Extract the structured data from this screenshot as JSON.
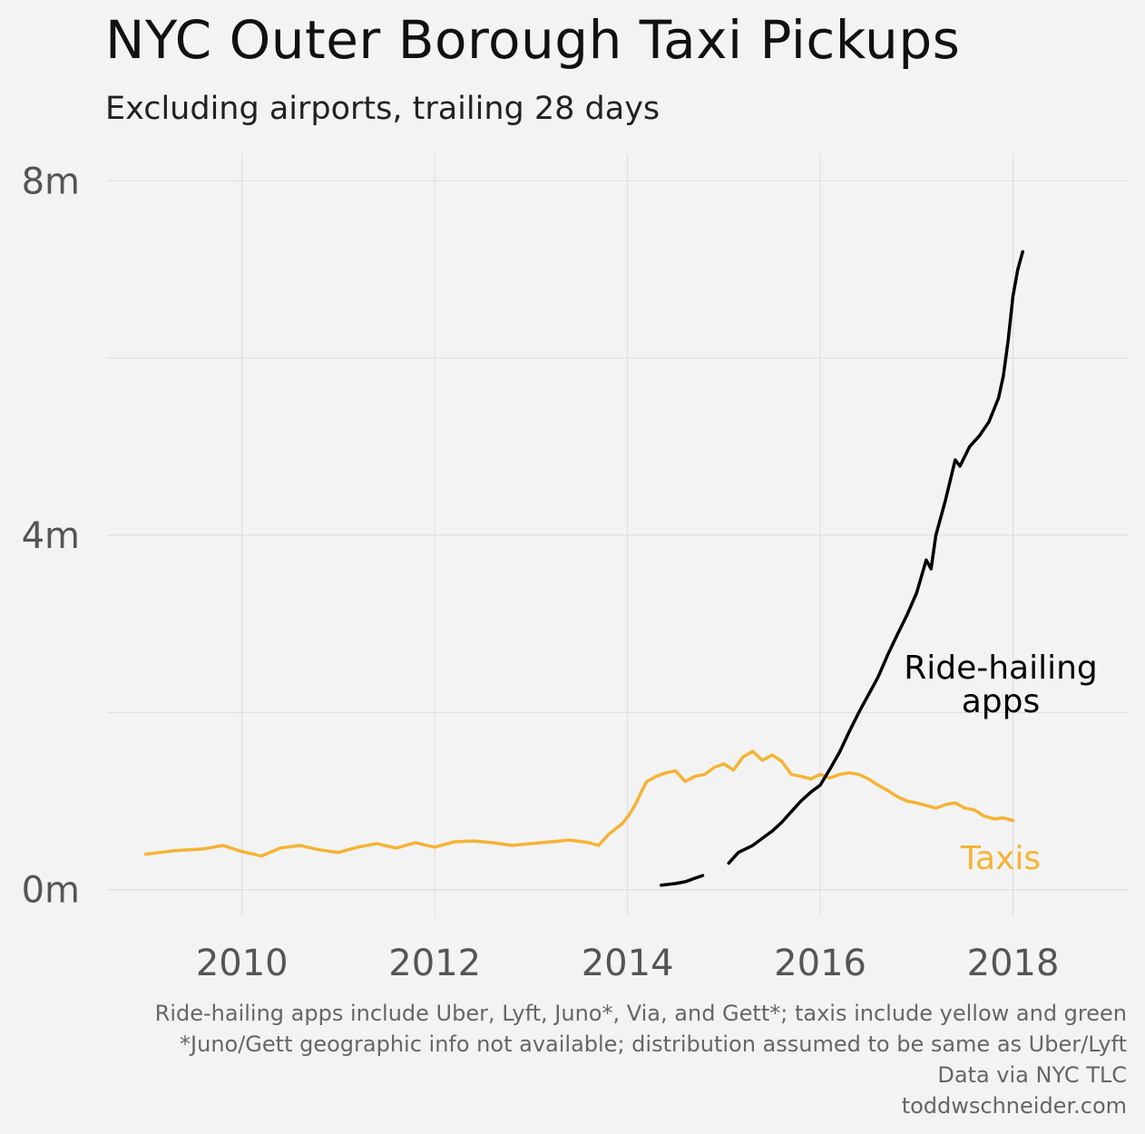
{
  "title": "NYC Outer Borough Taxi Pickups",
  "subtitle": "Excluding airports, trailing 28 days",
  "caption": [
    "Ride-hailing apps include Uber, Lyft, Juno*, Via, and Gett*; taxis include yellow and green",
    "*Juno/Gett geographic info not available; distribution assumed to be same as Uber/Lyft",
    "Data via NYC TLC",
    "toddwschneider.com"
  ],
  "colors": {
    "taxis": "#f5b335",
    "ride_hailing": "#000000",
    "grid": "#dcdcdc",
    "tick_text": "#555555"
  },
  "chart_data": {
    "type": "line",
    "xlim": [
      2008.6,
      2019.2
    ],
    "ylim": [
      -0.3,
      8.3
    ],
    "x_ticks": [
      2010,
      2012,
      2014,
      2016,
      2018
    ],
    "x_tick_labels": [
      "2010",
      "2012",
      "2014",
      "2016",
      "2018"
    ],
    "y_ticks": [
      0,
      4,
      8
    ],
    "y_tick_labels": [
      "0m",
      "4m",
      "8m"
    ],
    "y_minor_grid": [
      2,
      6
    ],
    "grid": true,
    "legend": "inline labels",
    "series": [
      {
        "name": "Taxis",
        "label": "Taxis",
        "color": "#f5b335",
        "segments": [
          [
            [
              2009.0,
              0.4
            ],
            [
              2009.3,
              0.44
            ],
            [
              2009.6,
              0.46
            ],
            [
              2009.8,
              0.5
            ],
            [
              2010.0,
              0.43
            ],
            [
              2010.2,
              0.38
            ],
            [
              2010.4,
              0.47
            ],
            [
              2010.6,
              0.5
            ],
            [
              2010.8,
              0.45
            ],
            [
              2011.0,
              0.42
            ],
            [
              2011.2,
              0.48
            ],
            [
              2011.4,
              0.52
            ],
            [
              2011.6,
              0.47
            ],
            [
              2011.8,
              0.53
            ],
            [
              2012.0,
              0.48
            ],
            [
              2012.2,
              0.54
            ],
            [
              2012.4,
              0.55
            ],
            [
              2012.6,
              0.53
            ],
            [
              2012.8,
              0.5
            ],
            [
              2013.0,
              0.52
            ],
            [
              2013.2,
              0.54
            ],
            [
              2013.4,
              0.56
            ],
            [
              2013.6,
              0.53
            ],
            [
              2013.7,
              0.5
            ],
            [
              2013.8,
              0.62
            ],
            [
              2013.95,
              0.75
            ],
            [
              2014.0,
              0.82
            ],
            [
              2014.05,
              0.9
            ],
            [
              2014.1,
              1.0
            ],
            [
              2014.15,
              1.12
            ],
            [
              2014.2,
              1.22
            ],
            [
              2014.3,
              1.28
            ],
            [
              2014.4,
              1.32
            ],
            [
              2014.5,
              1.34
            ],
            [
              2014.6,
              1.22
            ],
            [
              2014.7,
              1.28
            ],
            [
              2014.8,
              1.3
            ],
            [
              2014.9,
              1.38
            ],
            [
              2015.0,
              1.42
            ],
            [
              2015.1,
              1.35
            ],
            [
              2015.2,
              1.5
            ],
            [
              2015.3,
              1.56
            ],
            [
              2015.4,
              1.46
            ],
            [
              2015.5,
              1.52
            ],
            [
              2015.6,
              1.45
            ],
            [
              2015.7,
              1.3
            ],
            [
              2015.8,
              1.28
            ],
            [
              2015.9,
              1.25
            ],
            [
              2016.0,
              1.3
            ],
            [
              2016.1,
              1.26
            ],
            [
              2016.2,
              1.3
            ],
            [
              2016.3,
              1.32
            ],
            [
              2016.4,
              1.3
            ],
            [
              2016.5,
              1.25
            ],
            [
              2016.6,
              1.18
            ],
            [
              2016.7,
              1.12
            ],
            [
              2016.8,
              1.05
            ],
            [
              2016.9,
              1.0
            ],
            [
              2017.0,
              0.98
            ],
            [
              2017.1,
              0.95
            ],
            [
              2017.2,
              0.92
            ],
            [
              2017.3,
              0.96
            ],
            [
              2017.4,
              0.98
            ],
            [
              2017.5,
              0.92
            ],
            [
              2017.6,
              0.9
            ],
            [
              2017.7,
              0.83
            ],
            [
              2017.8,
              0.8
            ],
            [
              2017.9,
              0.81
            ],
            [
              2018.0,
              0.78
            ]
          ]
        ]
      },
      {
        "name": "Ride-hailing apps",
        "label": "Ride-hailing apps",
        "color": "#000000",
        "segments": [
          [
            [
              2014.35,
              0.05
            ],
            [
              2014.5,
              0.07
            ],
            [
              2014.6,
              0.09
            ],
            [
              2014.7,
              0.13
            ],
            [
              2014.78,
              0.16
            ]
          ],
          [
            [
              2015.05,
              0.3
            ],
            [
              2015.15,
              0.42
            ],
            [
              2015.3,
              0.5
            ],
            [
              2015.4,
              0.58
            ],
            [
              2015.5,
              0.66
            ],
            [
              2015.6,
              0.76
            ],
            [
              2015.7,
              0.88
            ],
            [
              2015.8,
              1.0
            ],
            [
              2015.9,
              1.1
            ],
            [
              2016.0,
              1.18
            ],
            [
              2016.1,
              1.36
            ],
            [
              2016.2,
              1.55
            ],
            [
              2016.3,
              1.78
            ],
            [
              2016.4,
              2.0
            ],
            [
              2016.5,
              2.2
            ],
            [
              2016.6,
              2.4
            ],
            [
              2016.7,
              2.65
            ],
            [
              2016.8,
              2.88
            ],
            [
              2016.9,
              3.1
            ],
            [
              2017.0,
              3.35
            ],
            [
              2017.1,
              3.72
            ],
            [
              2017.15,
              3.62
            ],
            [
              2017.2,
              4.0
            ],
            [
              2017.3,
              4.4
            ],
            [
              2017.4,
              4.85
            ],
            [
              2017.45,
              4.78
            ],
            [
              2017.55,
              5.0
            ],
            [
              2017.65,
              5.12
            ],
            [
              2017.75,
              5.28
            ],
            [
              2017.85,
              5.55
            ],
            [
              2017.9,
              5.8
            ],
            [
              2017.95,
              6.2
            ],
            [
              2018.0,
              6.7
            ],
            [
              2018.05,
              7.0
            ],
            [
              2018.1,
              7.2
            ]
          ]
        ]
      }
    ]
  }
}
